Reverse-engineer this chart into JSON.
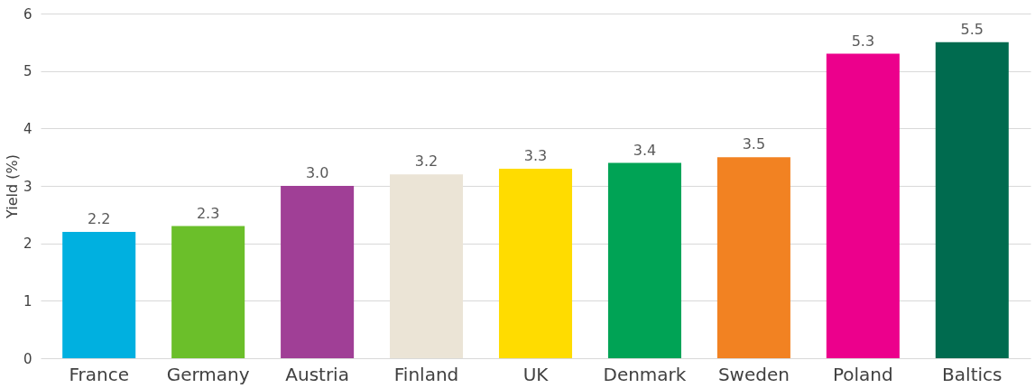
{
  "chart_data": {
    "type": "bar",
    "ylabel": "Yield (%)",
    "categories": [
      "France",
      "Germany",
      "Austria",
      "Finland",
      "UK",
      "Denmark",
      "Sweden",
      "Poland",
      "Baltics"
    ],
    "values": [
      2.2,
      2.3,
      3.0,
      3.2,
      3.3,
      3.4,
      3.5,
      5.3,
      5.5
    ],
    "value_labels": [
      "2.2",
      "2.3",
      "3.0",
      "3.2",
      "3.3",
      "3.4",
      "3.5",
      "5.3",
      "5.5"
    ],
    "colors": [
      "#00b0e0",
      "#6bbf2a",
      "#a03f96",
      "#ebe4d6",
      "#ffdc00",
      "#00a355",
      "#f28222",
      "#ec008c",
      "#006b4f"
    ],
    "ylim": [
      0,
      6
    ],
    "yticks": [
      0,
      1,
      2,
      3,
      4,
      5,
      6
    ],
    "grid": "y"
  }
}
